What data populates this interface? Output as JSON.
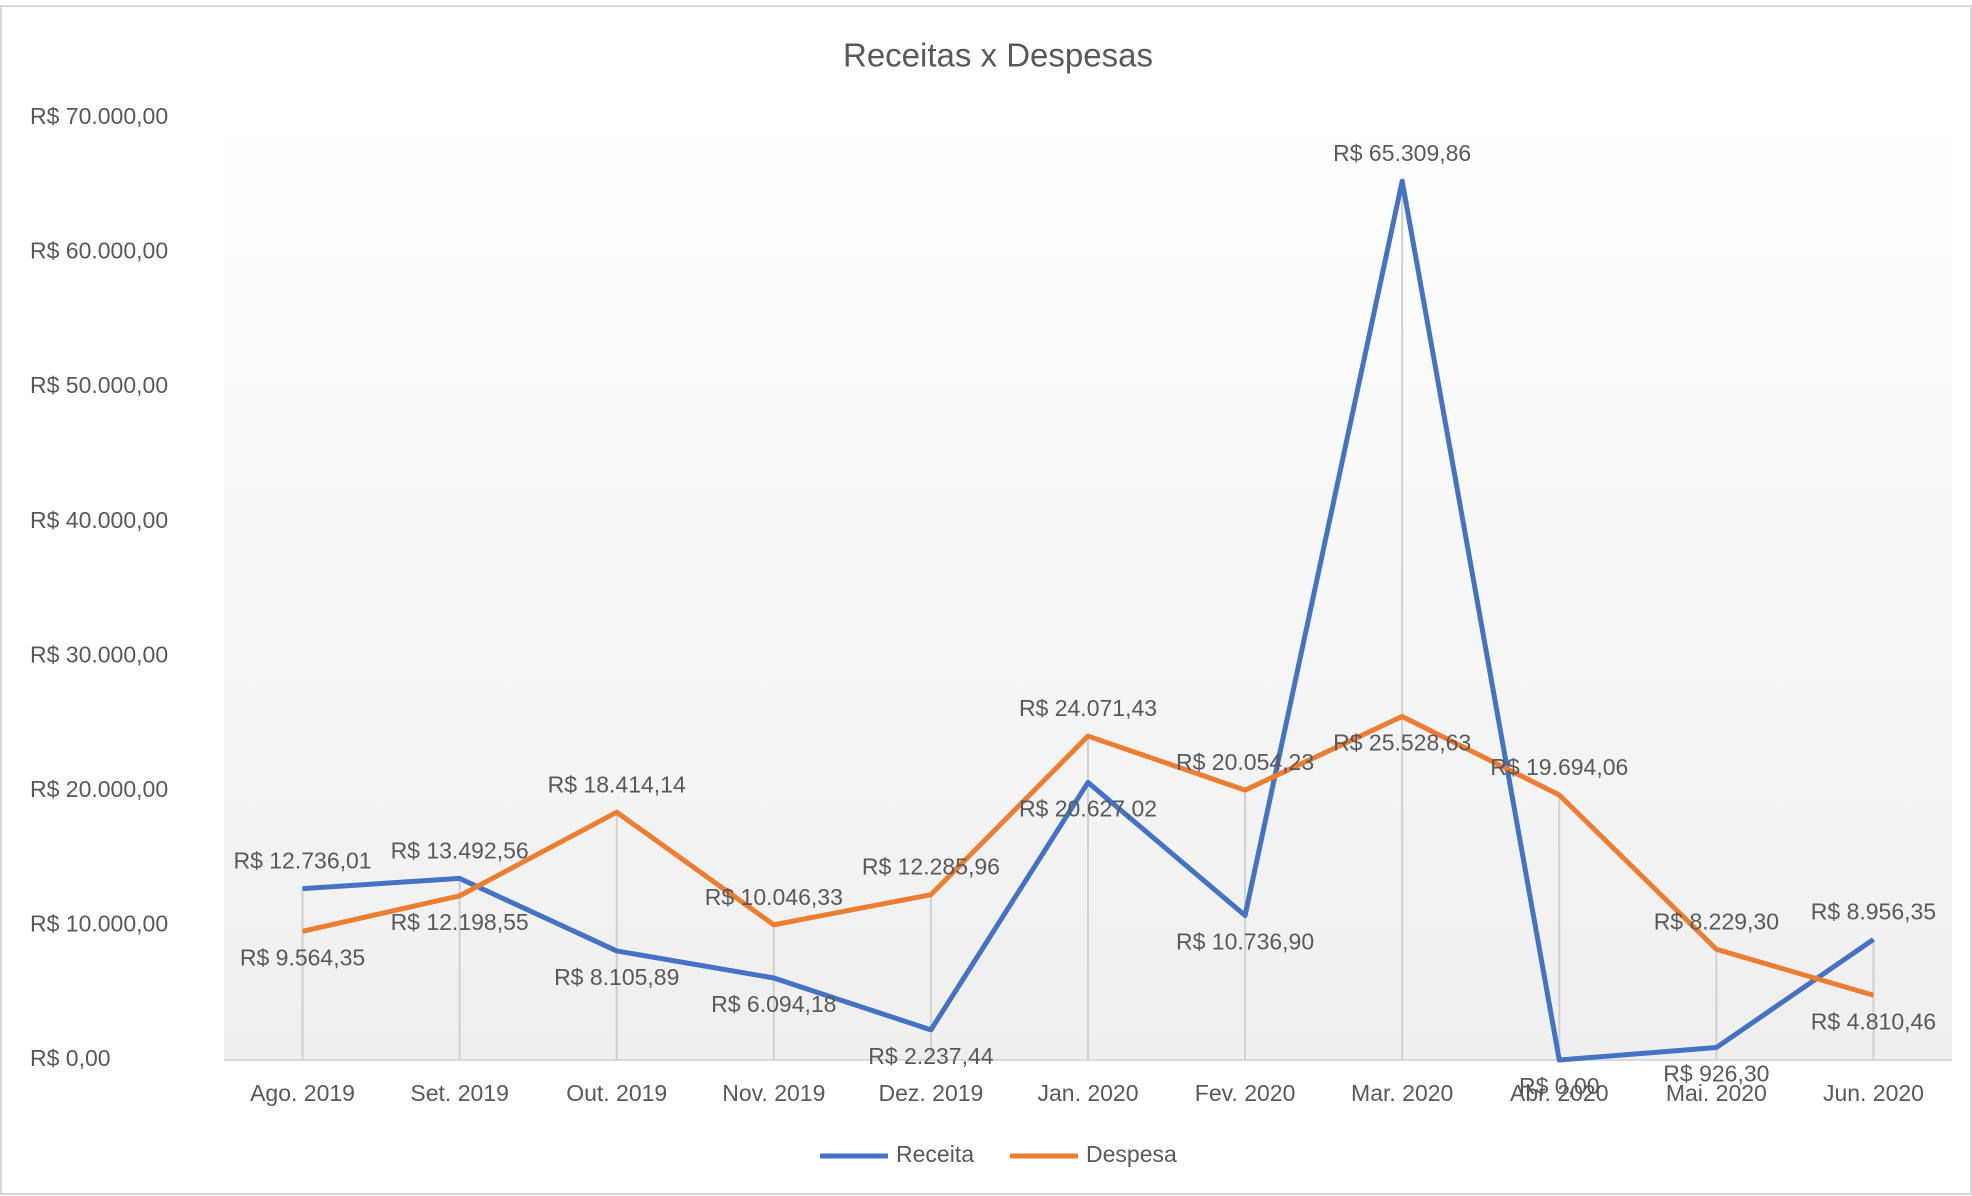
{
  "chart_data": {
    "type": "line",
    "title": "Receitas  x Despesas",
    "categories": [
      "Ago. 2019",
      "Set. 2019",
      "Out. 2019",
      "Nov. 2019",
      "Dez. 2019",
      "Jan. 2020",
      "Fev. 2020",
      "Mar. 2020",
      "Abr. 2020",
      "Mai. 2020",
      "Jun. 2020"
    ],
    "series": [
      {
        "name": "Receita",
        "color": "#4472c4",
        "values": [
          12736.01,
          13492.56,
          8105.89,
          6094.18,
          2237.44,
          20627.02,
          10736.9,
          65309.86,
          0,
          926.3,
          8956.35
        ],
        "value_labels": [
          "R$ 12.736,01",
          "R$ 13.492,56",
          "R$ 8.105,89",
          "R$ 6.094,18",
          "R$ 2.237,44",
          "R$ 20.627,02",
          "R$ 10.736,90",
          "R$ 65.309,86",
          "R$ 0,00",
          "R$ 926,30",
          "R$ 8.956,35"
        ]
      },
      {
        "name": "Despesa",
        "color": "#ed7d31",
        "values": [
          9564.35,
          12198.55,
          18414.14,
          10046.33,
          12285.96,
          24071.43,
          20054.23,
          25528.63,
          19694.06,
          8229.3,
          4810.46
        ],
        "value_labels": [
          "R$ 9.564,35",
          "R$ 12.198,55",
          "R$ 18.414,14",
          "R$ 10.046,33",
          "R$ 12.285,96",
          "R$ 24.071,43",
          "R$ 20.054,23",
          "R$ 25.528,63",
          "R$ 19.694,06",
          "R$ 8.229,30",
          "R$ 4.810,46"
        ]
      }
    ],
    "ylim": [
      0,
      70000
    ],
    "yticks": [
      {
        "value": 0,
        "label": "R$ 0,00"
      },
      {
        "value": 10000,
        "label": "R$ 10.000,00"
      },
      {
        "value": 20000,
        "label": "R$ 20.000,00"
      },
      {
        "value": 30000,
        "label": "R$ 30.000,00"
      },
      {
        "value": 40000,
        "label": "R$ 40.000,00"
      },
      {
        "value": 50000,
        "label": "R$ 50.000,00"
      },
      {
        "value": 60000,
        "label": "R$ 60.000,00"
      },
      {
        "value": 70000,
        "label": "R$ 70.000,00"
      }
    ],
    "legend": "bottom"
  }
}
